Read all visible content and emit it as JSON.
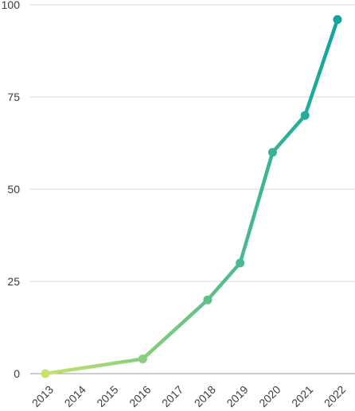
{
  "chart_data": {
    "type": "line",
    "title": "",
    "xlabel": "",
    "ylabel": "",
    "categories": [
      "2013",
      "2014",
      "2015",
      "2016",
      "2017",
      "2018",
      "2019",
      "2020",
      "2021",
      "2022"
    ],
    "ylim": [
      0,
      100
    ],
    "yticks": [
      0,
      25,
      50,
      75,
      100
    ],
    "grid": true,
    "legend": "none",
    "series": [
      {
        "points": [
          {
            "x": "2013",
            "y": 0
          },
          {
            "x": "2016",
            "y": 4
          },
          {
            "x": "2018",
            "y": 20
          },
          {
            "x": "2019",
            "y": 30
          },
          {
            "x": "2020",
            "y": 60
          },
          {
            "x": "2021",
            "y": 70
          },
          {
            "x": "2022",
            "y": 96
          }
        ]
      }
    ],
    "colors": {
      "gradient_start": "#c6e36b",
      "gradient_end": "#0ea5a0",
      "grid": "#d9d9d9",
      "axis": "#9a9a9a",
      "text": "#3d3d3d"
    }
  }
}
